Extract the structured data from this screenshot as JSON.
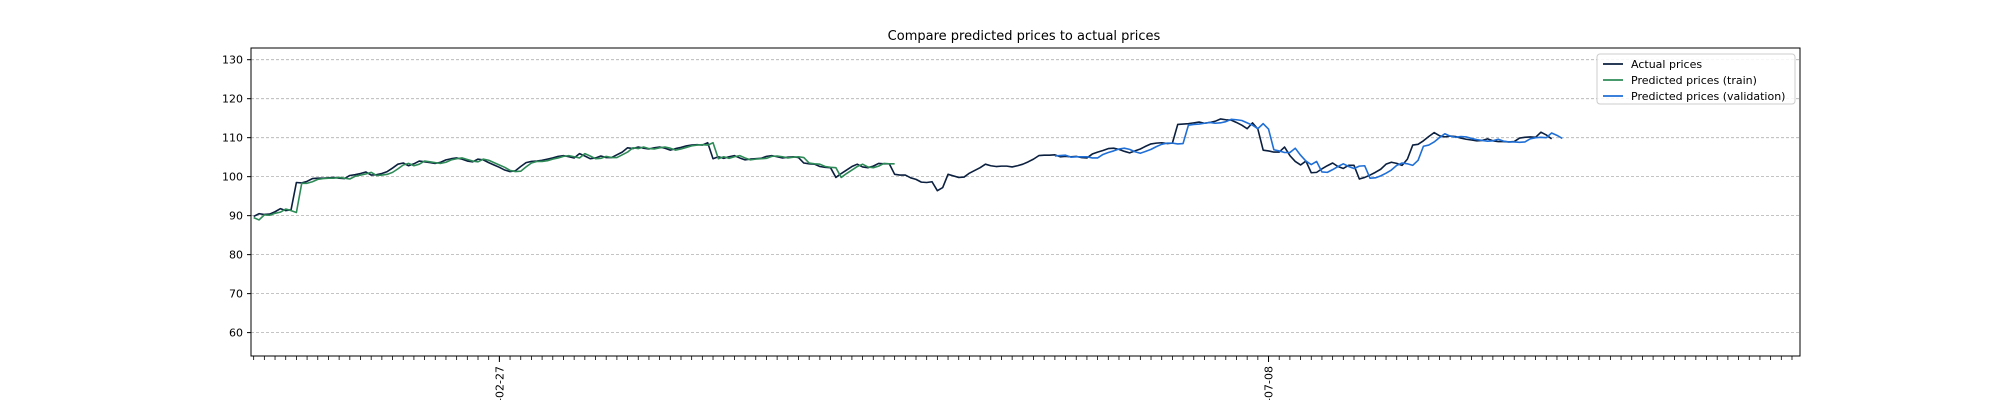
{
  "chart_data": {
    "type": "line",
    "title": "Compare predicted prices to actual prices",
    "xlabel": "",
    "ylabel": "",
    "ylim": [
      54,
      133
    ],
    "yticks": [
      60,
      70,
      80,
      90,
      100,
      110,
      120,
      130
    ],
    "ytick_labels": [
      "60",
      "70",
      "80",
      "90",
      "100",
      "110",
      "120",
      "130"
    ],
    "grid": "horizontal dashed",
    "legend_position": "upper right",
    "x_count": 290,
    "xlim": [
      -0.5,
      289.5
    ],
    "xtick_labels": [
      {
        "index": 46,
        "label": "-02-27"
      },
      {
        "index": 190,
        "label": "-07-08"
      }
    ],
    "series": [
      {
        "name": "Actual prices",
        "color": "#0b1f3f",
        "x_start": 0,
        "values": [
          89.8,
          90.5,
          90.3,
          90.4,
          91,
          91.8,
          91.3,
          91.5,
          98.5,
          98.4,
          98.8,
          99.5,
          99.6,
          99.6,
          99.7,
          99.8,
          99.6,
          99.5,
          100.3,
          100.5,
          100.8,
          101.2,
          100.4,
          100.5,
          100.8,
          101.3,
          102.2,
          103.2,
          103.5,
          102.8,
          103.3,
          104,
          103.8,
          103.6,
          103.4,
          103.7,
          104.3,
          104.6,
          104.8,
          104.5,
          104,
          103.8,
          104.5,
          104.3,
          103.6,
          103,
          102.4,
          101.7,
          101.3,
          101.5,
          102.6,
          103.6,
          103.9,
          104,
          104.2,
          104.5,
          104.8,
          105.2,
          105.4,
          105.1,
          104.8,
          105.9,
          105.3,
          104.6,
          104.8,
          105.3,
          104.9,
          104.9,
          105.6,
          106.3,
          107.4,
          107.2,
          107.6,
          107.3,
          107.1,
          107.4,
          107.6,
          107.3,
          106.8,
          107.2,
          107.5,
          107.9,
          108.1,
          108.2,
          108.1,
          108.7,
          104.6,
          105.1,
          104.7,
          105.1,
          105.4,
          104.8,
          104.3,
          104.5,
          104.6,
          104.7,
          105.2,
          105.4,
          105.1,
          104.8,
          105,
          105.1,
          104.9,
          103.5,
          103.3,
          103.2,
          102.6,
          102.4,
          102.3,
          99.8,
          100.8,
          101.7,
          102.6,
          103.2,
          102.5,
          102.3,
          102.7,
          103.4,
          103.3,
          103.3,
          100.6,
          100.4,
          100.4,
          99.7,
          99.3,
          98.6,
          98.5,
          98.7,
          96.4,
          97.2,
          100.6,
          100.2,
          99.8,
          99.9,
          100.9,
          101.6,
          102.3,
          103.2,
          102.8,
          102.6,
          102.7,
          102.7,
          102.5,
          102.8,
          103.2,
          103.8,
          104.5,
          105.4,
          105.5,
          105.5,
          105.6,
          105.1,
          105.2,
          105.1,
          105.2,
          104.9,
          104.8,
          105.8,
          106.3,
          106.7,
          107.2,
          107.3,
          107,
          106.5,
          106.1,
          106.6,
          107.1,
          107.8,
          108.4,
          108.6,
          108.7,
          108.5,
          108.6,
          113.4,
          113.5,
          113.6,
          113.8,
          114,
          113.7,
          113.9,
          114.2,
          114.8,
          114.6,
          114.5,
          113.9,
          113.2,
          112.3,
          113.8,
          112.2,
          106.8,
          106.6,
          106.3,
          106.3,
          107.6,
          105.4,
          103.9,
          103,
          104,
          101,
          101.1,
          102,
          102.8,
          103.5,
          102.6,
          102.1,
          102.9,
          102.9,
          99.4,
          99.8,
          100.4,
          101.1,
          101.9,
          103.2,
          103.7,
          103.4,
          102.9,
          104.5,
          108.1,
          108.3,
          109.2,
          110.3,
          111.3,
          110.5,
          110.2,
          110.4,
          110.3,
          109.9,
          109.6,
          109.4,
          109.2,
          109.3,
          109.7,
          109.2,
          109,
          109,
          108.9,
          109,
          109.9,
          110.1,
          110.2,
          110.1,
          111.4,
          110.7,
          109.7
        ]
      },
      {
        "name": "Predicted prices (train)",
        "color": "#2e8b57",
        "x_start": 0,
        "values": [
          89.5,
          88.9,
          90.2,
          90.1,
          90.6,
          90.9,
          91.7,
          91.3,
          90.8,
          98.3,
          98.3,
          98.7,
          99.3,
          99.5,
          99.6,
          99.6,
          99.8,
          99.6,
          99.4,
          100.1,
          100.4,
          100.7,
          101.1,
          100.3,
          100.4,
          100.6,
          101.1,
          102,
          103,
          103.4,
          102.8,
          103.2,
          104,
          103.8,
          103.6,
          103.4,
          103.7,
          104.3,
          104.6,
          104.8,
          104.4,
          104,
          103.8,
          104.5,
          104.2,
          103.6,
          103,
          102.4,
          101.6,
          101.3,
          101.4,
          102.5,
          103.5,
          103.9,
          103.9,
          104.1,
          104.5,
          104.8,
          105.2,
          105.4,
          105.1,
          104.8,
          105.9,
          105.3,
          104.6,
          104.7,
          105.2,
          104.9,
          104.9,
          105.6,
          106.3,
          107.4,
          107.2,
          107.6,
          107.2,
          107.1,
          107.4,
          107.6,
          107.3,
          106.8,
          107.1,
          107.5,
          107.9,
          108.1,
          108.2,
          108.1,
          108.7,
          104.6,
          105.1,
          104.7,
          105.1,
          105.4,
          104.8,
          104.3,
          104.5,
          104.6,
          104.7,
          105.2,
          105.3,
          105.1,
          104.8,
          105,
          105.1,
          104.9,
          103.5,
          103.3,
          103.2,
          102.6,
          102.4,
          102.3,
          99.8,
          100.8,
          101.7,
          102.6,
          103.2,
          102.5,
          102.3,
          102.7,
          103.4,
          103.3,
          103.3
        ]
      },
      {
        "name": "Predicted prices (validation)",
        "color": "#1f6fd6",
        "x_start": 150,
        "values": [
          105.3,
          105.4,
          105.5,
          105,
          105.1,
          105.1,
          105.1,
          104.8,
          104.8,
          105.7,
          106.2,
          106.6,
          107.1,
          107.3,
          107,
          106.4,
          106,
          106.5,
          107,
          107.7,
          108.3,
          108.6,
          108.6,
          108.4,
          108.5,
          113.2,
          113.4,
          113.5,
          113.7,
          113.9,
          113.7,
          113.8,
          114.1,
          114.7,
          114.6,
          114.4,
          113.8,
          113.2,
          112.3,
          113.6,
          112.2,
          106.9,
          106.6,
          106.2,
          106.2,
          107.3,
          105.5,
          104,
          103.1,
          103.9,
          101.2,
          101.1,
          101.8,
          102.6,
          103.3,
          102.6,
          102.1,
          102.7,
          102.8,
          99.6,
          99.7,
          100.2,
          100.9,
          101.7,
          102.9,
          103.5,
          103.3,
          102.9,
          104.2,
          107.8,
          108.1,
          108.9,
          110,
          111,
          110.4,
          110.1,
          110.3,
          110.2,
          109.8,
          109.5,
          109.3,
          109.1,
          109.2,
          109.6,
          109.1,
          108.9,
          108.9,
          108.8,
          108.9,
          109.7,
          110,
          110.1,
          110,
          111.2,
          110.6,
          109.8
        ]
      }
    ]
  }
}
